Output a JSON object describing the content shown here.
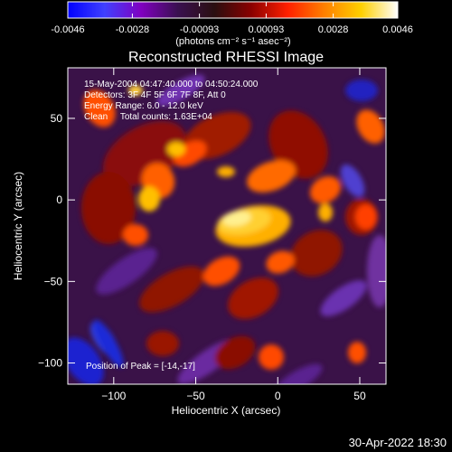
{
  "colorbar": {
    "tick_labels": [
      "-0.0046",
      "-0.0028",
      "-0.00093",
      "0.00093",
      "0.0028",
      "0.0046"
    ],
    "tick_values": [
      -0.0046,
      -0.0028,
      -0.00093,
      0.00093,
      0.0028,
      0.0046
    ],
    "range": [
      -0.0046,
      0.0046
    ],
    "units_label": "(photons cm⁻² s⁻¹ asec⁻²)",
    "colormap_stops": [
      "#0000ff",
      "#4040ff",
      "#8000c0",
      "#3a1050",
      "#2a0f10",
      "#8a0000",
      "#ff2000",
      "#ff8000",
      "#ffd000",
      "#ffffff"
    ]
  },
  "chart_data": {
    "type": "heatmap",
    "title": "Reconstructed RHESSI Image",
    "xlabel": "Heliocentric X (arcsec)",
    "ylabel": "Heliocentric Y (arcsec)",
    "xlim": [
      -128,
      66
    ],
    "ylim": [
      -113,
      81
    ],
    "x_ticks": [
      -100,
      -50,
      0,
      50
    ],
    "y_ticks": [
      -100,
      -50,
      0,
      50
    ],
    "x_tick_labels": [
      "−100",
      "−50",
      "0",
      "50"
    ],
    "y_tick_labels": [
      "−100",
      "−50",
      "0",
      "50"
    ],
    "peak_position": [
      -14,
      -17
    ],
    "annotations": [
      "15-May-2004 04:47:40.000 to 04:50:24.000",
      "Detectors: 3F 4F 5F 6F 7F 8F, Att 0",
      "Energy Range: 6.0 - 12.0 keV",
      "Clean     Total counts: 1.63E+04"
    ],
    "peak_annotation": "Position of Peak = [-14,-17]",
    "grid": false
  },
  "footer": {
    "timestamp": "30-Apr-2022 18:30"
  }
}
